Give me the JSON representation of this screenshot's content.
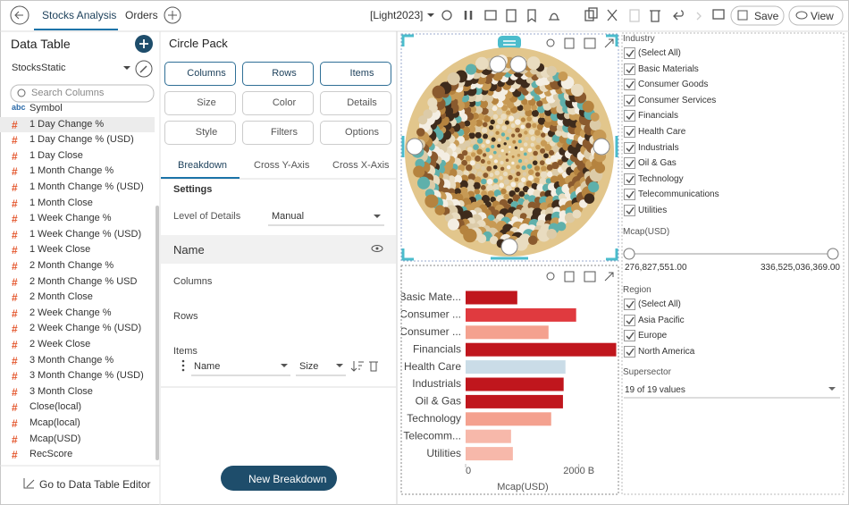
{
  "toolbar": {
    "tabs": [
      "Stocks Analysis",
      "Orders"
    ],
    "theme": "[Light2023]",
    "save": "Save",
    "view": "View"
  },
  "data_table": {
    "title": "Data Table",
    "source": "StocksStatic",
    "search_placeholder": "Search Columns",
    "columns": [
      {
        "icon": "abc",
        "name": "Symbol"
      },
      {
        "icon": "#",
        "name": "1 Day Change %"
      },
      {
        "icon": "#",
        "name": "1 Day Change % (USD)"
      },
      {
        "icon": "#",
        "name": "1 Day Close"
      },
      {
        "icon": "#",
        "name": "1 Month Change %"
      },
      {
        "icon": "#",
        "name": "1 Month Change % (USD)"
      },
      {
        "icon": "#",
        "name": "1 Month Close"
      },
      {
        "icon": "#",
        "name": "1 Week Change %"
      },
      {
        "icon": "#",
        "name": "1 Week Change % (USD)"
      },
      {
        "icon": "#",
        "name": "1 Week Close"
      },
      {
        "icon": "#",
        "name": "2 Month Change %"
      },
      {
        "icon": "#",
        "name": "2 Month Change % USD"
      },
      {
        "icon": "#",
        "name": "2 Month Close"
      },
      {
        "icon": "#",
        "name": "2 Week Change %"
      },
      {
        "icon": "#",
        "name": "2 Week Change % (USD)"
      },
      {
        "icon": "#",
        "name": "2 Week Close"
      },
      {
        "icon": "#",
        "name": "3 Month Change %"
      },
      {
        "icon": "#",
        "name": "3 Month Change % (USD)"
      },
      {
        "icon": "#",
        "name": "3 Month Close"
      },
      {
        "icon": "#",
        "name": "Close(local)"
      },
      {
        "icon": "#",
        "name": "Mcap(local)"
      },
      {
        "icon": "#",
        "name": "Mcap(USD)"
      },
      {
        "icon": "#",
        "name": "RecScore"
      }
    ],
    "footer": "Go to Data Table Editor"
  },
  "settings_panel": {
    "title": "Circle Pack",
    "buttons": [
      "Columns",
      "Rows",
      "Items",
      "Size",
      "Color",
      "Details",
      "Style",
      "Filters",
      "Options"
    ],
    "tabs": [
      "Breakdown",
      "Cross Y-Axis",
      "Cross X-Axis"
    ],
    "section": "Settings",
    "level_label": "Level of Details",
    "level_value": "Manual",
    "name_row": "Name",
    "groups": [
      "Columns",
      "Rows",
      "Items"
    ],
    "item_fields": [
      "Name",
      "Size"
    ],
    "new_button": "New Breakdown"
  },
  "chart_data": {
    "type": "hbar",
    "categories": [
      "Basic Mate...",
      "Consumer ...",
      "Consumer ...",
      "Financials",
      "Health Care",
      "Industrials",
      "Oil & Gas",
      "Technology",
      "Telecomm...",
      "Utilities"
    ],
    "values": [
      913,
      1953,
      1465,
      2661,
      1764,
      1732,
      1720,
      1512,
      803,
      835
    ],
    "colors": [
      "#c0161d",
      "#e03a3f",
      "#f4a18f",
      "#c0161d",
      "#cadce7",
      "#c0161d",
      "#c0161d",
      "#f4a18f",
      "#f7b8aa",
      "#f7b8aa"
    ],
    "xlabel": "Mcap(USD)",
    "xlim": [
      0,
      2700
    ],
    "xticks": [
      0,
      {
        "value": 2000,
        "label": "2000 B"
      }
    ]
  },
  "filters": {
    "industry": {
      "title": "Industry",
      "items": [
        "(Select All)",
        "Basic Materials",
        "Consumer Goods",
        "Consumer Services",
        "Financials",
        "Health Care",
        "Industrials",
        "Oil & Gas",
        "Technology",
        "Telecommunications",
        "Utilities"
      ]
    },
    "mcap": {
      "title": "Mcap(USD)",
      "min_label": "276,827,551.00",
      "max_label": "336,525,036,369.00"
    },
    "region": {
      "title": "Region",
      "items": [
        "(Select All)",
        "Asia Pacific",
        "Europe",
        "North America"
      ]
    },
    "supersector": {
      "title": "Supersector",
      "value": "19 of 19 values"
    }
  }
}
